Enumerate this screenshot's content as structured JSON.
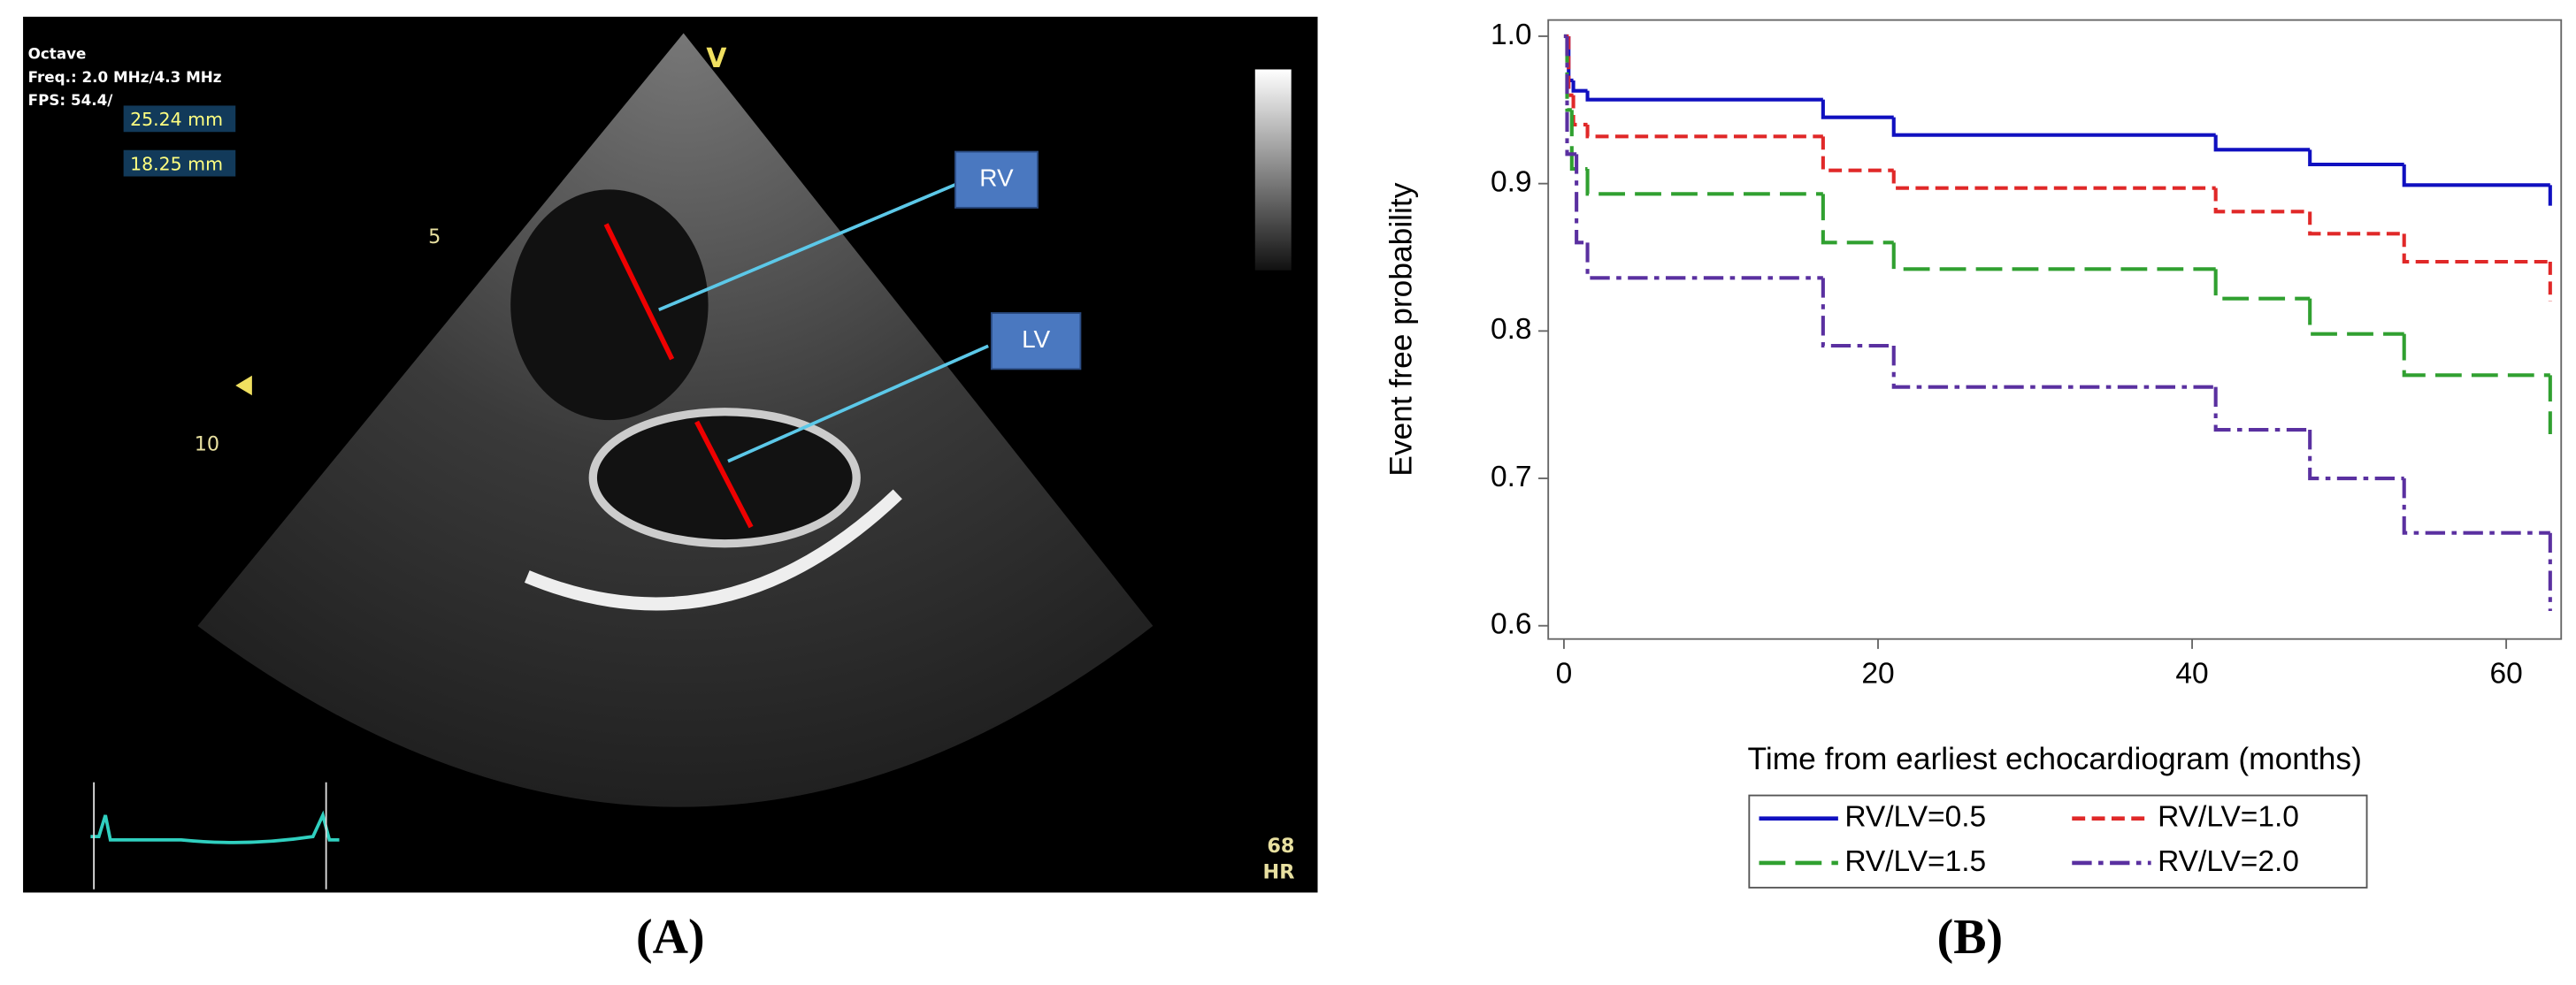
{
  "panel_a": {
    "label": "(A)",
    "header": [
      "Octave",
      "Freq.: 2.0 MHz/4.3 MHz",
      "FPS: 54.4/"
    ],
    "measurements": [
      "25.24 mm",
      "18.25 mm"
    ],
    "probe_mark": "V",
    "depth_labels": [
      "5",
      "10"
    ],
    "callouts": [
      "RV",
      "LV"
    ],
    "heart_rate": "68",
    "heart_rate_unit": "HR"
  },
  "panel_b": {
    "label": "(B)"
  },
  "chart_data": {
    "type": "step",
    "xlabel": "Time from earliest echocardiogram (months)",
    "ylabel": "Event free probability",
    "xlim": [
      -1,
      63.5
    ],
    "ylim": [
      0.591,
      1.011
    ],
    "xticks": [
      0,
      20,
      40,
      60
    ],
    "yticks": [
      0.6,
      0.7,
      0.8,
      0.9,
      {
        "value": 1,
        "label": "1.0"
      }
    ],
    "legend": "bottom",
    "series": [
      {
        "name": "RV/LV=0.5",
        "color": "#1010c0",
        "dash": "solid",
        "x": [
          0,
          0.3,
          0.6,
          1.5,
          16.5,
          21,
          41.5,
          47.5,
          53.5,
          62.8
        ],
        "values": [
          1.0,
          0.97,
          0.963,
          0.957,
          0.945,
          0.933,
          0.923,
          0.913,
          0.899,
          0.885
        ]
      },
      {
        "name": "RV/LV=1.0",
        "color": "#e02828",
        "dash": "dashed",
        "x": [
          0,
          0.3,
          0.6,
          1.5,
          16.5,
          21,
          41.5,
          47.5,
          53.5,
          62.8
        ],
        "values": [
          1.0,
          0.96,
          0.94,
          0.932,
          0.909,
          0.897,
          0.881,
          0.866,
          0.847,
          0.82
        ]
      },
      {
        "name": "RV/LV=1.5",
        "color": "#30a030",
        "dash": "longdash",
        "x": [
          0,
          0.2,
          0.5,
          1.5,
          16.5,
          21,
          41.5,
          47.5,
          53.5,
          62.8
        ],
        "values": [
          1.0,
          0.95,
          0.91,
          0.893,
          0.86,
          0.842,
          0.822,
          0.798,
          0.77,
          0.73
        ]
      },
      {
        "name": "RV/LV=2.0",
        "color": "#5a30a0",
        "dash": "dashdot",
        "x": [
          0,
          0.2,
          0.8,
          1.5,
          16.5,
          21,
          41.5,
          47.5,
          53.5,
          62.8
        ],
        "values": [
          1.0,
          0.92,
          0.86,
          0.836,
          0.79,
          0.762,
          0.733,
          0.7,
          0.663,
          0.61
        ]
      }
    ]
  }
}
